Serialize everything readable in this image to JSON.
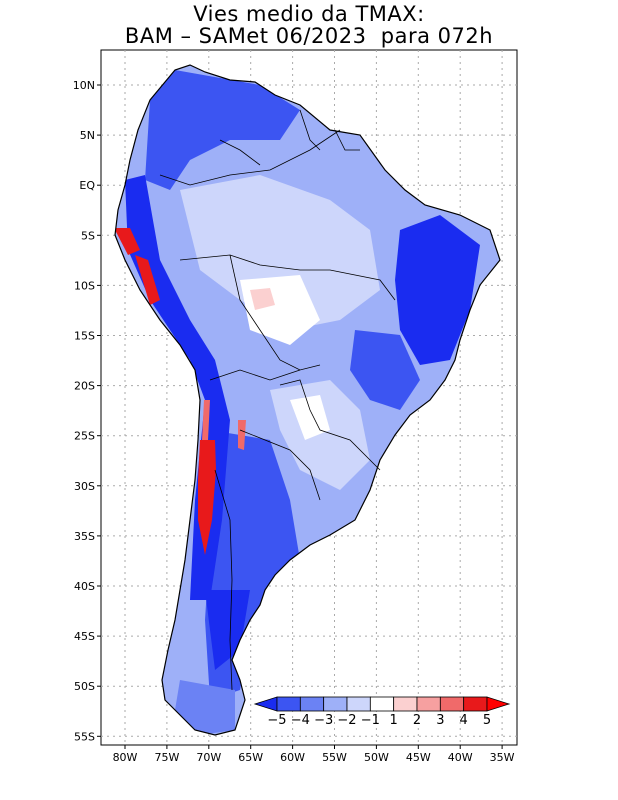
{
  "title": {
    "line1": "Vies medio da TMAX:",
    "line2": "BAM – SAMet 06/2023  para 072h"
  },
  "lat_labels": [
    "10N",
    "5N",
    "EQ",
    "5S",
    "10S",
    "15S",
    "20S",
    "25S",
    "30S",
    "35S",
    "40S",
    "45S",
    "50S",
    "55S"
  ],
  "lon_labels": [
    "80W",
    "75W",
    "70W",
    "65W",
    "60W",
    "55W",
    "50W",
    "45W",
    "40W",
    "35W"
  ],
  "colorbar": {
    "labels": [
      "−5",
      "−4",
      "−3",
      "−2",
      "−1",
      "1",
      "2",
      "3",
      "4",
      "5"
    ],
    "colors": [
      "#1a2cf0",
      "#3c55f2",
      "#6b82f4",
      "#9eb0f8",
      "#cdd6fb",
      "#ffffff",
      "#fbd0d0",
      "#f6a0a0",
      "#f06a6a",
      "#e8191b",
      "#ff0000"
    ]
  },
  "colors": {
    "strong_negative": "#1a2cf0",
    "moderate_negative": "#6b82f4",
    "weak_negative": "#cdd6fb",
    "neutral": "#ffffff",
    "positive": "#e8191b"
  }
}
